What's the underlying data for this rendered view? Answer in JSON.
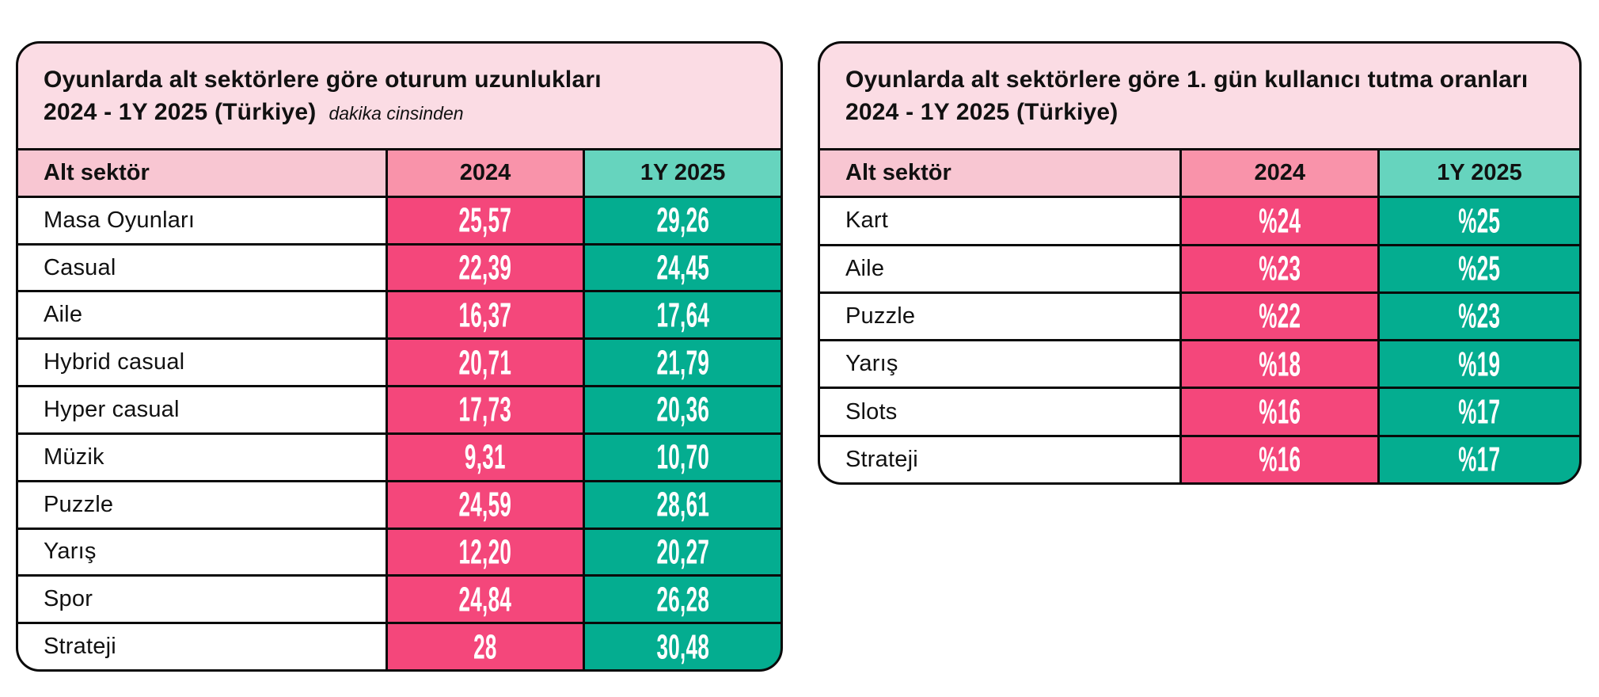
{
  "colors": {
    "title_band": "#FBDCE4",
    "header_label_cell": "#F8C6D2",
    "header_2024_cell": "#F993AA",
    "header_2025_cell": "#66D4BE",
    "value_2024_cell": "#F4477B",
    "value_2025_cell": "#04AD90",
    "border": "#0a0a0a",
    "value_text": "#ffffff",
    "text": "#111111"
  },
  "tables": [
    {
      "title_line1": "Oyunlarda alt sektörlere göre oturum uzunlukları",
      "title_line2": "2024 - 1Y 2025 (Türkiye)",
      "unit_note": "dakika cinsinden",
      "columns": [
        "Alt sektör",
        "2024",
        "1Y 2025"
      ],
      "rows": [
        {
          "label": "Masa Oyunları",
          "v2024": "25,57",
          "v2025": "29,26"
        },
        {
          "label": "Casual",
          "v2024": "22,39",
          "v2025": "24,45"
        },
        {
          "label": "Aile",
          "v2024": "16,37",
          "v2025": "17,64"
        },
        {
          "label": "Hybrid casual",
          "v2024": "20,71",
          "v2025": "21,79"
        },
        {
          "label": "Hyper casual",
          "v2024": "17,73",
          "v2025": "20,36"
        },
        {
          "label": "Müzik",
          "v2024": "9,31",
          "v2025": "10,70"
        },
        {
          "label": "Puzzle",
          "v2024": "24,59",
          "v2025": "28,61"
        },
        {
          "label": "Yarış",
          "v2024": "12,20",
          "v2025": "20,27"
        },
        {
          "label": "Spor",
          "v2024": "24,84",
          "v2025": "26,28"
        },
        {
          "label": "Strateji",
          "v2024": "28",
          "v2025": "30,48"
        }
      ]
    },
    {
      "title_line1": "Oyunlarda alt sektörlere göre 1. gün kullanıcı tutma oranları",
      "title_line2": "2024 - 1Y 2025 (Türkiye)",
      "unit_note": "",
      "columns": [
        "Alt sektör",
        "2024",
        "1Y 2025"
      ],
      "rows": [
        {
          "label": "Kart",
          "v2024": "%24",
          "v2025": "%25"
        },
        {
          "label": "Aile",
          "v2024": "%23",
          "v2025": "%25"
        },
        {
          "label": "Puzzle",
          "v2024": "%22",
          "v2025": "%23"
        },
        {
          "label": "Yarış",
          "v2024": "%18",
          "v2025": "%19"
        },
        {
          "label": "Slots",
          "v2024": "%16",
          "v2025": "%17"
        },
        {
          "label": "Strateji",
          "v2024": "%16",
          "v2025": "%17"
        }
      ]
    }
  ],
  "chart_data": [
    {
      "type": "table",
      "title": "Oyunlarda alt sektörlere göre oturum uzunlukları 2024 - 1Y 2025 (Türkiye)",
      "subtitle": "dakika cinsinden",
      "categories": [
        "Masa Oyunları",
        "Casual",
        "Aile",
        "Hybrid casual",
        "Hyper casual",
        "Müzik",
        "Puzzle",
        "Yarış",
        "Spor",
        "Strateji"
      ],
      "series": [
        {
          "name": "2024",
          "values": [
            25.57,
            22.39,
            16.37,
            20.71,
            17.73,
            9.31,
            24.59,
            12.2,
            24.84,
            28
          ]
        },
        {
          "name": "1Y 2025",
          "values": [
            29.26,
            24.45,
            17.64,
            21.79,
            20.36,
            10.7,
            28.61,
            20.27,
            26.28,
            30.48
          ]
        }
      ],
      "unit": "dakika"
    },
    {
      "type": "table",
      "title": "Oyunlarda alt sektörlere göre 1. gün kullanıcı tutma oranları 2024 - 1Y 2025 (Türkiye)",
      "categories": [
        "Kart",
        "Aile",
        "Puzzle",
        "Yarış",
        "Slots",
        "Strateji"
      ],
      "series": [
        {
          "name": "2024",
          "values": [
            24,
            23,
            22,
            18,
            16,
            16
          ]
        },
        {
          "name": "1Y 2025",
          "values": [
            25,
            25,
            23,
            19,
            17,
            17
          ]
        }
      ],
      "unit": "%"
    }
  ]
}
